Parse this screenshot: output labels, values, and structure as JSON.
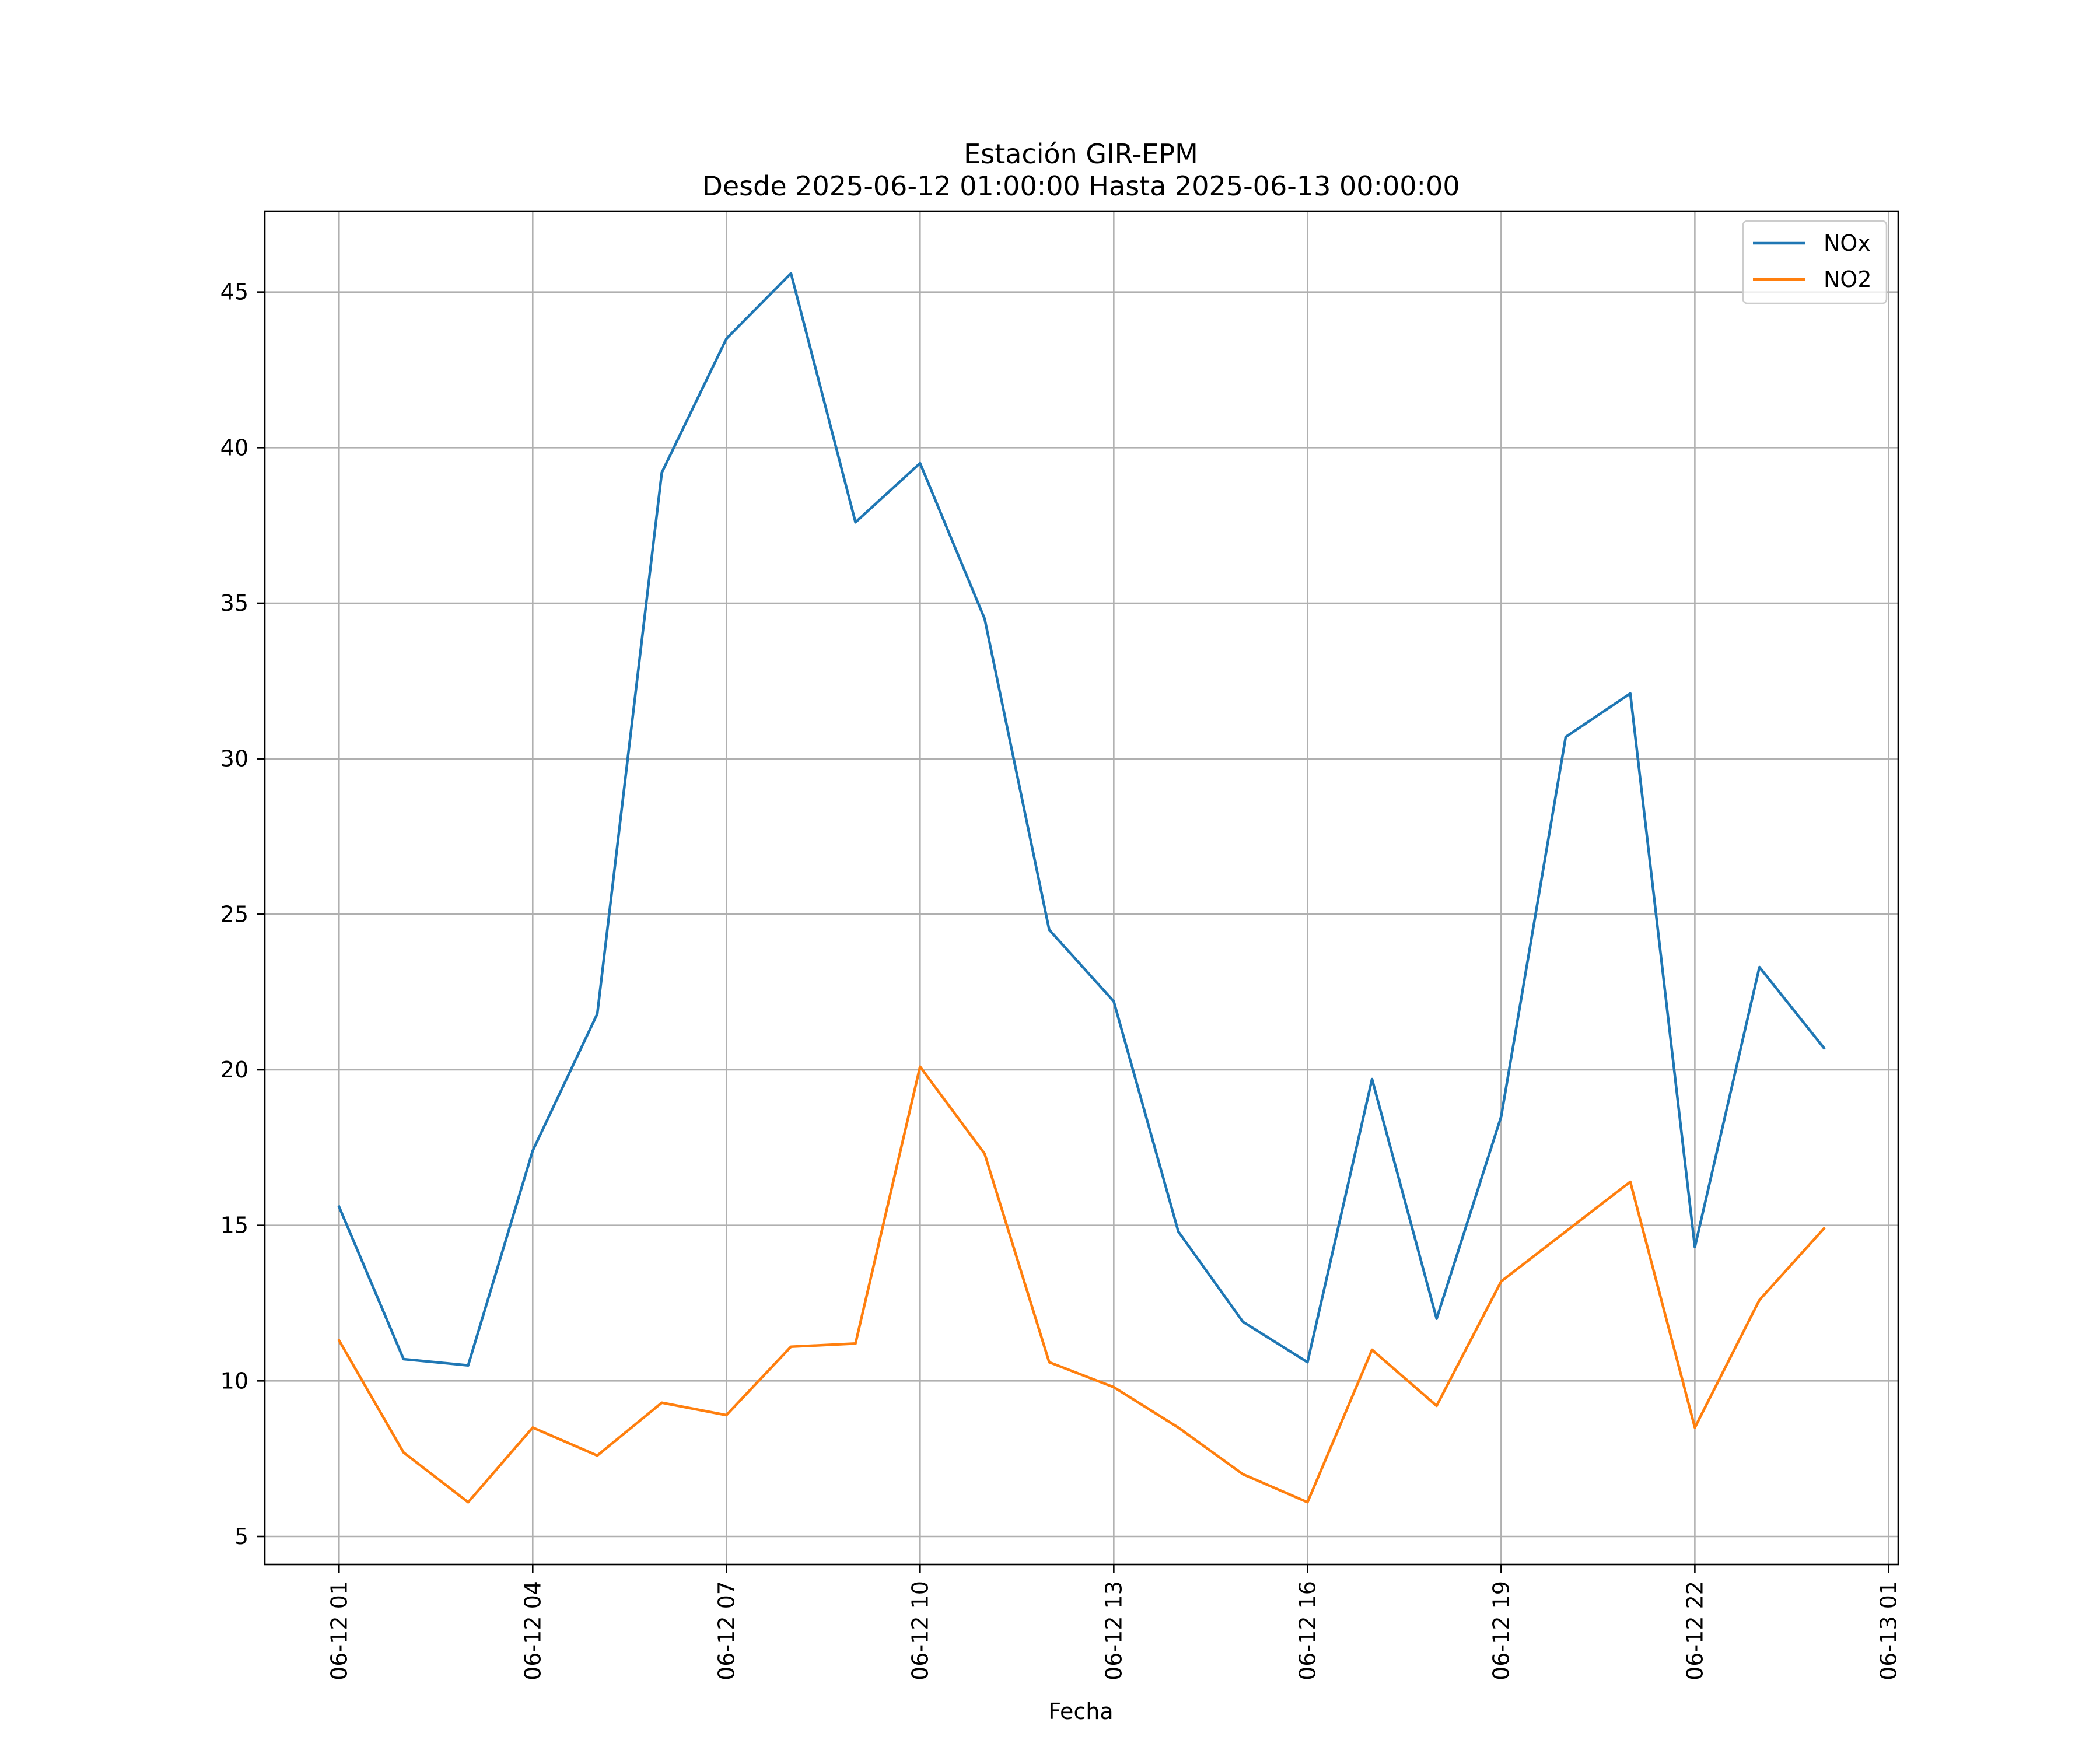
{
  "chart_data": {
    "type": "line",
    "title_line1": "Estación GIR-EPM",
    "title_line2": "Desde 2025-06-12 01:00:00 Hasta 2025-06-13 00:00:00",
    "xlabel": "Fecha",
    "ylabel": "",
    "grid": true,
    "legend_position": "top-right",
    "x": [
      "2025-06-12 01:00",
      "2025-06-12 02:00",
      "2025-06-12 03:00",
      "2025-06-12 04:00",
      "2025-06-12 05:00",
      "2025-06-12 06:00",
      "2025-06-12 07:00",
      "2025-06-12 08:00",
      "2025-06-12 09:00",
      "2025-06-12 10:00",
      "2025-06-12 11:00",
      "2025-06-12 12:00",
      "2025-06-12 13:00",
      "2025-06-12 14:00",
      "2025-06-12 15:00",
      "2025-06-12 16:00",
      "2025-06-12 17:00",
      "2025-06-12 18:00",
      "2025-06-12 19:00",
      "2025-06-12 20:00",
      "2025-06-12 21:00",
      "2025-06-12 22:00",
      "2025-06-12 23:00",
      "2025-06-13 00:00"
    ],
    "xlim": [
      "2025-06-11 23:51",
      "2025-06-13 01:09"
    ],
    "x_ticks": [
      {
        "label": "06-12 01",
        "at": "2025-06-12 01:00"
      },
      {
        "label": "06-12 04",
        "at": "2025-06-12 04:00"
      },
      {
        "label": "06-12 07",
        "at": "2025-06-12 07:00"
      },
      {
        "label": "06-12 10",
        "at": "2025-06-12 10:00"
      },
      {
        "label": "06-12 13",
        "at": "2025-06-12 13:00"
      },
      {
        "label": "06-12 16",
        "at": "2025-06-12 16:00"
      },
      {
        "label": "06-12 19",
        "at": "2025-06-12 19:00"
      },
      {
        "label": "06-12 22",
        "at": "2025-06-12 22:00"
      },
      {
        "label": "06-13 01",
        "at": "2025-06-13 01:00"
      }
    ],
    "ylim": [
      4.1,
      47.6
    ],
    "y_ticks": [
      5,
      10,
      15,
      20,
      25,
      30,
      35,
      40,
      45
    ],
    "series": [
      {
        "name": "NOx",
        "color": "#1f77b4",
        "values": [
          15.6,
          10.7,
          10.5,
          17.4,
          21.8,
          39.2,
          43.5,
          45.6,
          37.6,
          39.5,
          34.5,
          24.5,
          22.2,
          14.8,
          11.9,
          10.6,
          19.7,
          12.0,
          18.5,
          30.7,
          32.1,
          14.3,
          23.3,
          20.7
        ]
      },
      {
        "name": "NO2",
        "color": "#ff7f0e",
        "values": [
          11.3,
          7.7,
          6.1,
          8.5,
          7.6,
          9.3,
          8.9,
          11.1,
          11.2,
          20.1,
          17.3,
          10.6,
          9.8,
          8.5,
          7.0,
          6.1,
          11.0,
          9.2,
          13.2,
          14.8,
          16.4,
          8.5,
          12.6,
          14.9
        ]
      }
    ]
  }
}
